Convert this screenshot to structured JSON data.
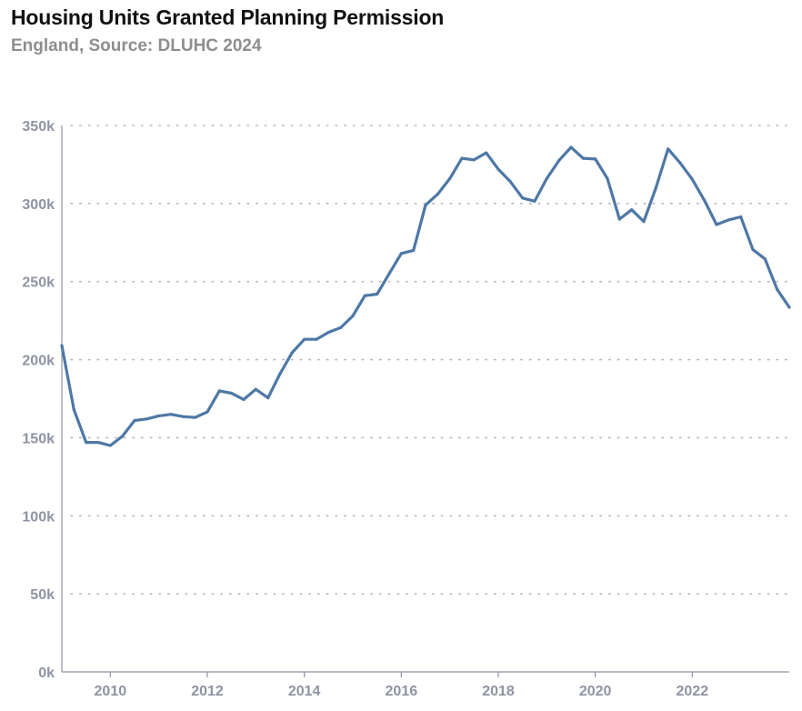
{
  "title": "Housing Units Granted Planning Permission",
  "subtitle": "England, Source: DLUHC 2024",
  "colors": {
    "line": "#4e78a5",
    "grid": "#b5b8c4",
    "axis": "#8f93a3"
  },
  "chart_data": {
    "type": "line",
    "title": "Housing Units Granted Planning Permission",
    "subtitle": "England, Source: DLUHC 2024",
    "xlabel": "",
    "ylabel": "",
    "xlim": [
      2009.0,
      2024.0
    ],
    "ylim": [
      0,
      350000
    ],
    "grid": true,
    "y_ticks": [
      0,
      50000,
      100000,
      150000,
      200000,
      250000,
      300000,
      350000
    ],
    "y_tick_labels": [
      "0k",
      "50k",
      "100k",
      "150k",
      "200k",
      "250k",
      "300k",
      "350k"
    ],
    "x_ticks": [
      2010,
      2012,
      2014,
      2016,
      2018,
      2020,
      2022
    ],
    "x_tick_labels": [
      "2010",
      "2012",
      "2014",
      "2016",
      "2018",
      "2020",
      "2022"
    ],
    "series": [
      {
        "x": [
          2009.0,
          2009.25,
          2009.5,
          2009.75,
          2010.0,
          2010.25,
          2010.5,
          2010.75,
          2011.0,
          2011.25,
          2011.5,
          2011.75,
          2012.0,
          2012.25,
          2012.5,
          2012.75,
          2013.0,
          2013.25,
          2013.5,
          2013.75,
          2014.0,
          2014.25,
          2014.5,
          2014.75,
          2015.0,
          2015.25,
          2015.5,
          2015.75,
          2016.0,
          2016.25,
          2016.5,
          2016.75,
          2017.0,
          2017.25,
          2017.5,
          2017.75,
          2018.0,
          2018.25,
          2018.5,
          2018.75,
          2019.0,
          2019.25,
          2019.5,
          2019.75,
          2020.0,
          2020.25,
          2020.5,
          2020.75,
          2021.0,
          2021.25,
          2021.5,
          2021.75,
          2022.0,
          2022.25,
          2022.5,
          2022.75,
          2023.0,
          2023.25,
          2023.5,
          2023.75,
          2024.0
        ],
        "values": [
          209000,
          168000,
          147000,
          147000,
          145000,
          151000,
          161000,
          162000,
          164000,
          165000,
          163500,
          163000,
          166500,
          180000,
          178500,
          174500,
          181000,
          175500,
          191000,
          204500,
          213000,
          213000,
          217500,
          220500,
          228000,
          241000,
          242000,
          255000,
          268000,
          270000,
          299000,
          306000,
          316000,
          329000,
          328000,
          332500,
          322000,
          314000,
          303500,
          301500,
          316000,
          327500,
          336000,
          329000,
          328500,
          316000,
          290000,
          296000,
          288500,
          310000,
          335000,
          326000,
          315500,
          302000,
          286500,
          289500,
          291500,
          270500,
          264500,
          245000,
          233500
        ]
      }
    ]
  }
}
